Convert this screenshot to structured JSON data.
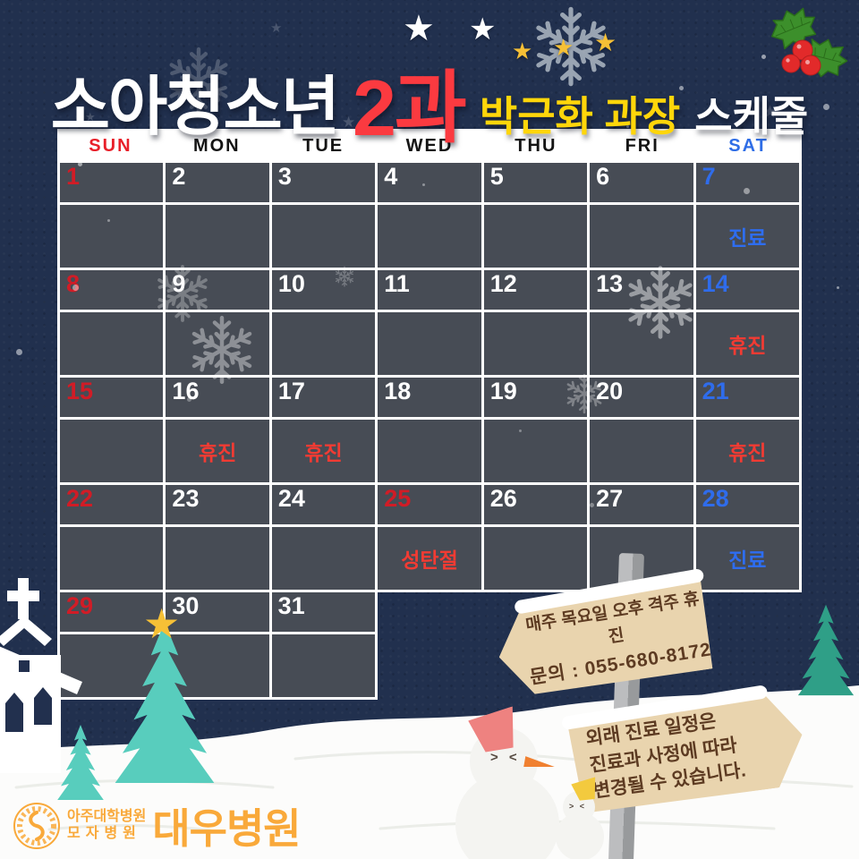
{
  "title": {
    "dept": "소아청소년",
    "section": "2과",
    "doctor": "박근화 과장",
    "suffix": "스케줄"
  },
  "icons": {
    "star": "★",
    "snowman_eyes": "> <"
  },
  "colors": {
    "background_navy": "#21304e",
    "cell_slate": "#474c55",
    "sun_red": "#e8202a",
    "sat_blue": "#2e6de6",
    "note_closed_red": "#f23b33",
    "note_clinic_blue": "#2e6df0",
    "title_red": "#fb3a40",
    "title_yellow": "#ffd60a",
    "sign_wood": "#e9d4ae",
    "sign_text_brown": "#5d3b22",
    "logo_orange": "#f9a93a",
    "tree_teal": "#58cdbd"
  },
  "calendar": {
    "day_headers": [
      {
        "label": "SUN",
        "type": "sun"
      },
      {
        "label": "MON",
        "type": "weekday"
      },
      {
        "label": "TUE",
        "type": "weekday"
      },
      {
        "label": "WED",
        "type": "weekday"
      },
      {
        "label": "THU",
        "type": "weekday"
      },
      {
        "label": "FRI",
        "type": "weekday"
      },
      {
        "label": "SAT",
        "type": "sat"
      }
    ],
    "weeks": [
      {
        "cells": [
          {
            "num": "1",
            "num_type": "sun",
            "note": ""
          },
          {
            "num": "2",
            "note": ""
          },
          {
            "num": "3",
            "note": ""
          },
          {
            "num": "4",
            "note": ""
          },
          {
            "num": "5",
            "note": ""
          },
          {
            "num": "6",
            "note": ""
          },
          {
            "num": "7",
            "num_type": "sat",
            "note": "진료",
            "note_type": "clinic"
          }
        ]
      },
      {
        "cells": [
          {
            "num": "8",
            "num_type": "sun",
            "note": ""
          },
          {
            "num": "9",
            "note": ""
          },
          {
            "num": "10",
            "note": ""
          },
          {
            "num": "11",
            "note": ""
          },
          {
            "num": "12",
            "note": ""
          },
          {
            "num": "13",
            "note": ""
          },
          {
            "num": "14",
            "num_type": "sat",
            "note": "휴진",
            "note_type": "closed"
          }
        ]
      },
      {
        "cells": [
          {
            "num": "15",
            "num_type": "sun",
            "note": ""
          },
          {
            "num": "16",
            "note": "휴진",
            "note_type": "closed"
          },
          {
            "num": "17",
            "note": "휴진",
            "note_type": "closed"
          },
          {
            "num": "18",
            "note": ""
          },
          {
            "num": "19",
            "note": ""
          },
          {
            "num": "20",
            "note": ""
          },
          {
            "num": "21",
            "num_type": "sat",
            "note": "휴진",
            "note_type": "closed"
          }
        ]
      },
      {
        "cells": [
          {
            "num": "22",
            "num_type": "sun",
            "note": ""
          },
          {
            "num": "23",
            "note": ""
          },
          {
            "num": "24",
            "note": ""
          },
          {
            "num": "25",
            "num_type": "holiday",
            "note": "성탄절",
            "note_type": "closed"
          },
          {
            "num": "26",
            "note": ""
          },
          {
            "num": "27",
            "note": ""
          },
          {
            "num": "28",
            "num_type": "sat",
            "note": "진료",
            "note_type": "clinic"
          }
        ]
      },
      {
        "cells": [
          {
            "num": "29",
            "num_type": "sun",
            "note": ""
          },
          {
            "num": "30",
            "note": ""
          },
          {
            "num": "31",
            "note": ""
          }
        ]
      }
    ]
  },
  "sign_weekly": {
    "line1": "매주 목요일 오후 격주 휴진",
    "line2": "문의 : 055-680-8172"
  },
  "sign_notice": {
    "line1": "외래 진료 일정은",
    "line2": "진료과 사정에 따라",
    "line3": "변경될 수 있습니다."
  },
  "footer_logo": {
    "group_line1": "아주대학병원",
    "group_line2": "모자병원",
    "hospital_name": "대우병원"
  }
}
